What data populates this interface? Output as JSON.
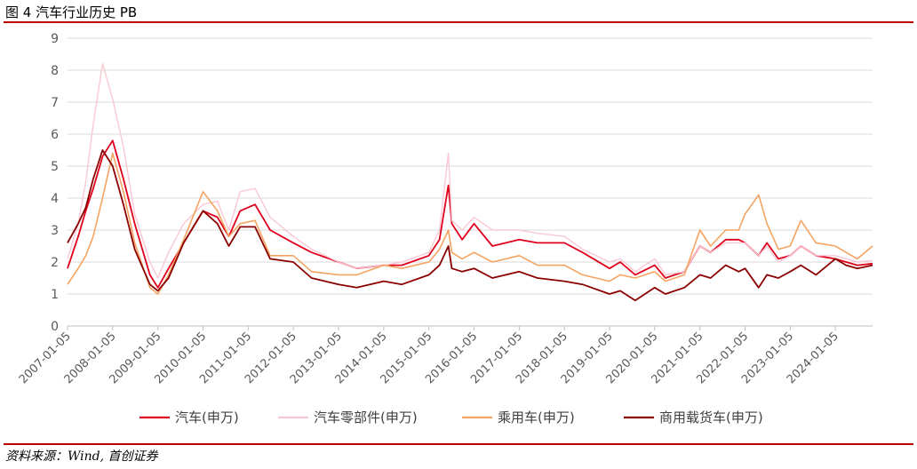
{
  "figure": {
    "title": "图 4 汽车行业历史 PB",
    "source": "资料来源：Wind, 首创证券"
  },
  "colors": {
    "rule": "#c00000",
    "gridline": "#d9d9d9",
    "axis_text": "#595959"
  },
  "chart_data": {
    "type": "line",
    "title": "",
    "xlabel": "",
    "ylabel": "",
    "ylim": [
      0,
      9
    ],
    "yticks": [
      0,
      1,
      2,
      3,
      4,
      5,
      6,
      7,
      8,
      9
    ],
    "xlim": [
      "2007-01-05",
      "2024-11-01"
    ],
    "xticks": [
      "2007-01-05",
      "2008-01-05",
      "2009-01-05",
      "2010-01-05",
      "2011-01-05",
      "2012-01-05",
      "2013-01-05",
      "2014-01-05",
      "2015-01-05",
      "2016-01-05",
      "2017-01-05",
      "2018-01-05",
      "2019-01-05",
      "2020-01-05",
      "2021-01-05",
      "2022-01-05",
      "2023-01-05",
      "2024-01-05"
    ],
    "grid": "horizontal",
    "legend_position": "bottom",
    "x": [
      "2007-01-05",
      "2007-04-01",
      "2007-06-01",
      "2007-08-01",
      "2007-10-15",
      "2008-01-05",
      "2008-04-01",
      "2008-07-01",
      "2008-11-01",
      "2009-01-05",
      "2009-04-01",
      "2009-08-01",
      "2010-01-05",
      "2010-05-01",
      "2010-08-01",
      "2010-11-01",
      "2011-03-01",
      "2011-07-01",
      "2012-01-05",
      "2012-06-01",
      "2013-01-05",
      "2013-06-01",
      "2014-01-05",
      "2014-06-01",
      "2015-01-05",
      "2015-04-01",
      "2015-06-12",
      "2015-07-10",
      "2015-10-01",
      "2016-01-05",
      "2016-06-01",
      "2017-01-05",
      "2017-06-01",
      "2018-01-05",
      "2018-06-01",
      "2019-01-05",
      "2019-04-01",
      "2019-08-01",
      "2020-01-05",
      "2020-04-01",
      "2020-09-01",
      "2021-01-05",
      "2021-04-01",
      "2021-08-01",
      "2021-11-15",
      "2022-01-05",
      "2022-04-25",
      "2022-07-01",
      "2022-10-01",
      "2023-01-05",
      "2023-04-01",
      "2023-08-01",
      "2024-01-05",
      "2024-04-01",
      "2024-07-01",
      "2024-11-01"
    ],
    "series": [
      {
        "name": "汽车(申万)",
        "color": "#e0001b",
        "width": 1.8,
        "values": [
          1.8,
          2.8,
          3.6,
          4.3,
          5.3,
          5.8,
          4.6,
          3.2,
          1.6,
          1.2,
          1.8,
          2.6,
          3.6,
          3.4,
          2.8,
          3.6,
          3.8,
          3.0,
          2.6,
          2.3,
          2.0,
          1.8,
          1.9,
          1.9,
          2.2,
          2.7,
          4.4,
          3.2,
          2.7,
          3.2,
          2.5,
          2.7,
          2.6,
          2.6,
          2.3,
          1.8,
          2.0,
          1.6,
          1.9,
          1.5,
          1.7,
          2.5,
          2.3,
          2.7,
          2.7,
          2.6,
          2.2,
          2.6,
          2.1,
          2.2,
          2.5,
          2.2,
          2.1,
          2.0,
          1.9,
          1.95
        ]
      },
      {
        "name": "汽车零部件(申万)",
        "color": "#f9c8d2",
        "width": 1.4,
        "values": [
          2.1,
          3.2,
          4.5,
          6.3,
          8.2,
          7.1,
          5.6,
          3.5,
          2.0,
          1.5,
          2.3,
          3.2,
          3.8,
          3.9,
          3.0,
          4.2,
          4.3,
          3.4,
          2.8,
          2.4,
          2.0,
          1.8,
          1.9,
          2.0,
          2.3,
          3.0,
          5.4,
          3.3,
          3.0,
          3.4,
          3.0,
          3.0,
          2.9,
          2.8,
          2.4,
          2.0,
          2.1,
          1.7,
          2.1,
          1.6,
          1.7,
          2.5,
          2.3,
          2.6,
          2.6,
          2.6,
          2.2,
          2.5,
          2.0,
          2.2,
          2.5,
          2.2,
          2.2,
          2.1,
          2.0,
          2.05
        ]
      },
      {
        "name": "乘用车(申万)",
        "color": "#f4a460",
        "width": 1.6,
        "values": [
          1.3,
          1.8,
          2.2,
          2.8,
          4.0,
          5.4,
          4.2,
          2.6,
          1.2,
          1.0,
          1.6,
          2.7,
          4.2,
          3.6,
          2.8,
          3.2,
          3.3,
          2.2,
          2.2,
          1.7,
          1.6,
          1.6,
          1.9,
          1.8,
          2.0,
          2.4,
          3.0,
          2.3,
          2.1,
          2.3,
          2.0,
          2.2,
          1.9,
          1.9,
          1.6,
          1.4,
          1.6,
          1.5,
          1.7,
          1.4,
          1.6,
          3.0,
          2.5,
          3.0,
          3.0,
          3.5,
          4.1,
          3.2,
          2.4,
          2.5,
          3.3,
          2.6,
          2.5,
          2.3,
          2.1,
          2.5
        ]
      },
      {
        "name": "商用载货车(申万)",
        "color": "#8b0000",
        "width": 1.8,
        "values": [
          2.6,
          3.2,
          3.7,
          4.6,
          5.5,
          5.0,
          3.8,
          2.4,
          1.3,
          1.1,
          1.5,
          2.6,
          3.6,
          3.2,
          2.5,
          3.1,
          3.1,
          2.1,
          2.0,
          1.5,
          1.3,
          1.2,
          1.4,
          1.3,
          1.6,
          1.9,
          2.5,
          1.8,
          1.7,
          1.8,
          1.5,
          1.7,
          1.5,
          1.4,
          1.3,
          1.0,
          1.1,
          0.8,
          1.2,
          1.0,
          1.2,
          1.6,
          1.5,
          1.9,
          1.7,
          1.8,
          1.2,
          1.6,
          1.5,
          1.7,
          1.9,
          1.6,
          2.1,
          1.9,
          1.8,
          1.9
        ]
      }
    ]
  }
}
